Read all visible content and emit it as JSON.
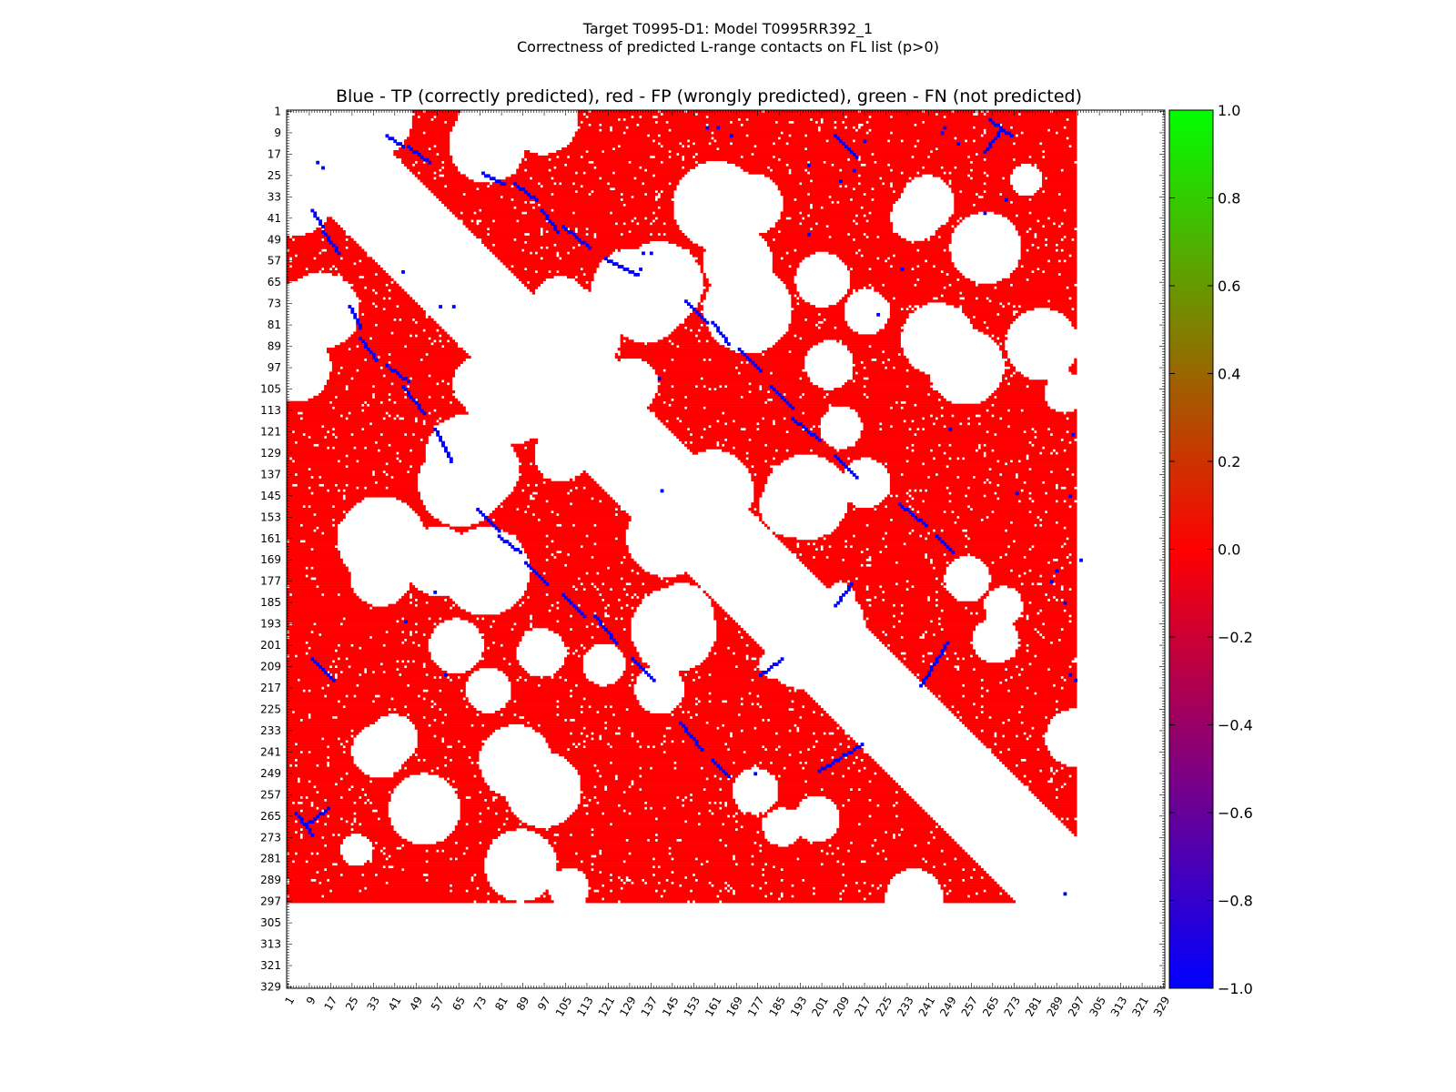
{
  "header": {
    "line1": "Target T0995-D1: Model T0995RR392_1",
    "line2": "Correctness of predicted L-range contacts on FL list (p>0)"
  },
  "colors": {
    "tp": "#0000ff",
    "fp": "#ff0000",
    "fn": "#00ff00",
    "background": "#ffffff"
  },
  "chart_data": {
    "type": "heatmap",
    "title": "Blue - TP (correctly predicted), red - FP (wrongly predicted), green - FN (not predicted)",
    "xlabel": "",
    "ylabel": "",
    "xlim": [
      1,
      329
    ],
    "ylim": [
      1,
      329
    ],
    "x_ticks": [
      1,
      9,
      17,
      25,
      33,
      41,
      49,
      57,
      65,
      73,
      81,
      89,
      97,
      105,
      113,
      121,
      129,
      137,
      145,
      153,
      161,
      169,
      177,
      185,
      193,
      201,
      209,
      217,
      225,
      233,
      241,
      249,
      257,
      265,
      273,
      281,
      289,
      297,
      305,
      313,
      321,
      329
    ],
    "y_ticks": [
      1,
      9,
      17,
      25,
      33,
      41,
      49,
      57,
      65,
      73,
      81,
      89,
      97,
      105,
      113,
      121,
      129,
      137,
      145,
      153,
      161,
      169,
      177,
      185,
      193,
      201,
      209,
      217,
      225,
      233,
      241,
      249,
      257,
      265,
      273,
      281,
      289,
      297,
      305,
      313,
      321,
      329
    ],
    "y_inverted": true,
    "lower_triangle_extent": 297,
    "upper_triangle_extent": 296,
    "min_separation": 24,
    "cell_value_fp": 0.0,
    "cell_value_tp": -1.0,
    "cell_value_fn": 1.0,
    "tp_diagonals": [
      {
        "from": [
          10,
          38
        ],
        "to": [
          14,
          44
        ]
      },
      {
        "from": [
          14,
          46
        ],
        "to": [
          20,
          54
        ]
      },
      {
        "from": [
          24,
          74
        ],
        "to": [
          28,
          82
        ]
      },
      {
        "from": [
          28,
          86
        ],
        "to": [
          34,
          94
        ]
      },
      {
        "from": [
          38,
          96
        ],
        "to": [
          46,
          102
        ]
      },
      {
        "from": [
          44,
          104
        ],
        "to": [
          52,
          114
        ]
      },
      {
        "from": [
          56,
          120
        ],
        "to": [
          62,
          132
        ]
      },
      {
        "from": [
          72,
          150
        ],
        "to": [
          80,
          158
        ]
      },
      {
        "from": [
          80,
          160
        ],
        "to": [
          88,
          166
        ]
      },
      {
        "from": [
          90,
          170
        ],
        "to": [
          98,
          178
        ]
      },
      {
        "from": [
          104,
          182
        ],
        "to": [
          112,
          190
        ]
      },
      {
        "from": [
          116,
          190
        ],
        "to": [
          124,
          200
        ]
      },
      {
        "from": [
          130,
          206
        ],
        "to": [
          138,
          214
        ]
      },
      {
        "from": [
          148,
          230
        ],
        "to": [
          156,
          240
        ]
      },
      {
        "from": [
          160,
          244
        ],
        "to": [
          166,
          250
        ]
      },
      {
        "from": [
          8,
          268
        ],
        "to": [
          16,
          262
        ]
      },
      {
        "from": [
          10,
          206
        ],
        "to": [
          18,
          214
        ]
      },
      {
        "from": [
          200,
          248
        ],
        "to": [
          216,
          238
        ]
      },
      {
        "from": [
          178,
          212
        ],
        "to": [
          186,
          206
        ]
      },
      {
        "from": [
          264,
          4
        ],
        "to": [
          272,
          10
        ]
      }
    ],
    "tp_points": [
      [
        12,
        20
      ],
      [
        14,
        22
      ],
      [
        44,
        61
      ],
      [
        58,
        74
      ],
      [
        63,
        74
      ],
      [
        140,
        101
      ],
      [
        45,
        192
      ],
      [
        56,
        181
      ],
      [
        60,
        212
      ],
      [
        141,
        143
      ],
      [
        196,
        47
      ],
      [
        222,
        77
      ],
      [
        249,
        120
      ],
      [
        231,
        60
      ],
      [
        162,
        7
      ],
      [
        274,
        144
      ],
      [
        176,
        249
      ],
      [
        294,
        145
      ],
      [
        289,
        173
      ],
      [
        292,
        185
      ],
      [
        287,
        177
      ],
      [
        295,
        122
      ],
      [
        134,
        54
      ],
      [
        137,
        54
      ],
      [
        133,
        60
      ],
      [
        208,
        27
      ],
      [
        252,
        13
      ],
      [
        217,
        12
      ],
      [
        270,
        34
      ],
      [
        262,
        39
      ],
      [
        247,
        7
      ],
      [
        246,
        9
      ],
      [
        213,
        23
      ],
      [
        196,
        21
      ],
      [
        167,
        10
      ],
      [
        158,
        7
      ],
      [
        292,
        294
      ],
      [
        294,
        212
      ],
      [
        296,
        214
      ],
      [
        298,
        169
      ]
    ],
    "fn_points": []
  },
  "colorbar": {
    "ticks": [
      "1.0",
      "0.8",
      "0.6",
      "0.4",
      "0.2",
      "0.0",
      "−0.2",
      "−0.4",
      "−0.6",
      "−0.8",
      "−1.0"
    ],
    "vmin": -1.0,
    "vmax": 1.0
  }
}
